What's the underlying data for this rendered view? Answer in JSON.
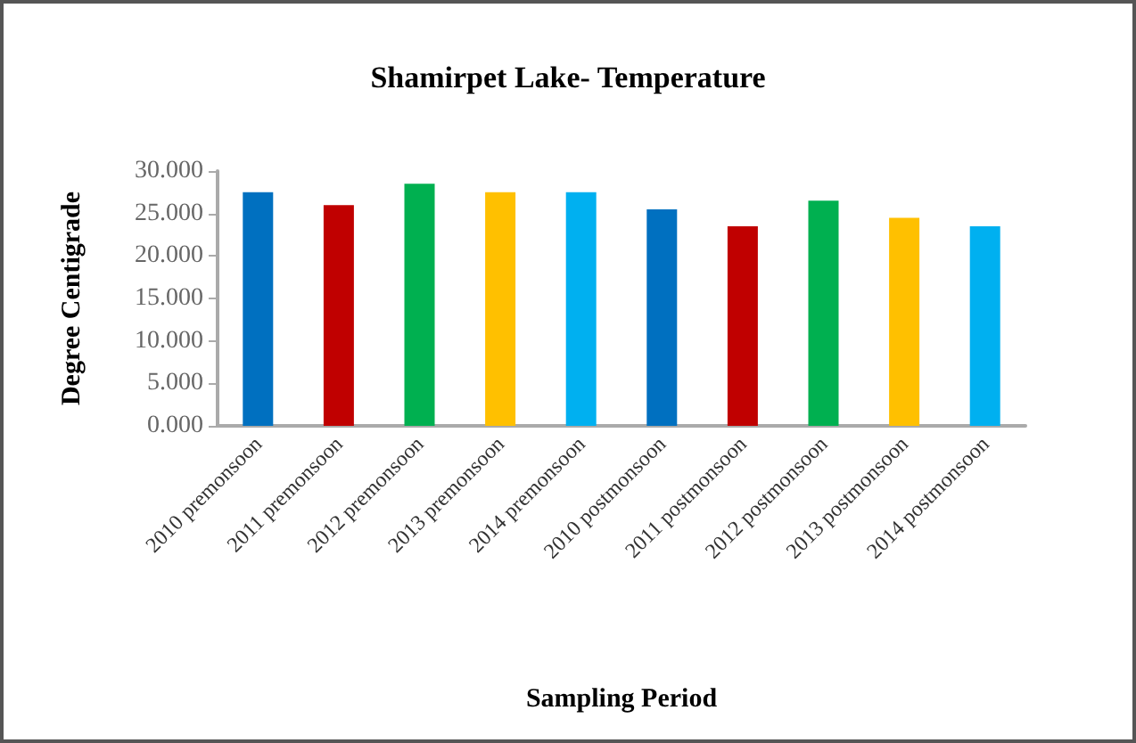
{
  "chart_data": {
    "type": "bar",
    "title": "Shamirpet Lake- Temperature",
    "xlabel": "Sampling Period",
    "ylabel": "Degree Centigrade",
    "categories": [
      "2010 premonsoon",
      "2011 premonsoon",
      "2012 premonsoon",
      "2013 premonsoon",
      "2014 premonsoon",
      "2010 postmonsoon",
      "2011 postmonsoon",
      "2012 postmonsoon",
      "2013 postmonsoon",
      "2014 postmonsoon"
    ],
    "values": [
      27.5,
      26,
      28.5,
      27.5,
      27.5,
      25.5,
      23.5,
      26.5,
      24.5,
      23.5
    ],
    "colors": [
      "#0070c0",
      "#c00000",
      "#00b050",
      "#ffc000",
      "#00b0f0",
      "#0070c0",
      "#c00000",
      "#00b050",
      "#ffc000",
      "#00b0f0"
    ],
    "ylim": [
      0,
      30
    ],
    "yticks": [
      {
        "value": 0,
        "label": "0.000"
      },
      {
        "value": 5,
        "label": "5.000"
      },
      {
        "value": 10,
        "label": "10.000"
      },
      {
        "value": 15,
        "label": "15.000"
      },
      {
        "value": 20,
        "label": "20.000"
      },
      {
        "value": 25,
        "label": "25.000"
      },
      {
        "value": 30,
        "label": "30.000"
      }
    ],
    "grid": false
  }
}
